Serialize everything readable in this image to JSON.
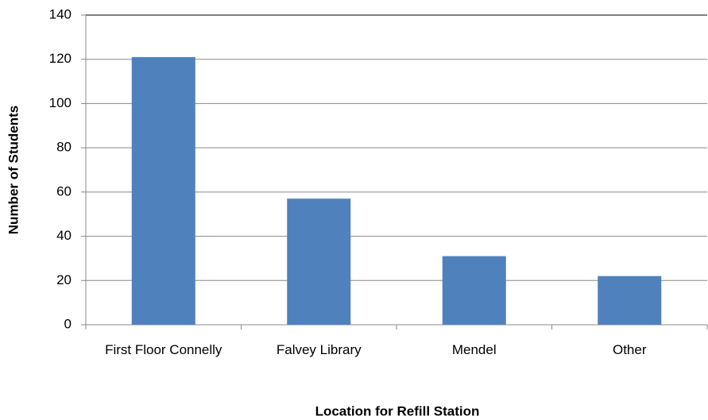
{
  "chart_data": {
    "type": "bar",
    "x_label": "Location for Refill Station",
    "y_label": "Number of Students",
    "categories": [
      "First Floor Connelly",
      "Falvey Library",
      "Mendel",
      "Other"
    ],
    "values": [
      121,
      57,
      31,
      22
    ],
    "color": "#4f81bd",
    "ylim": [
      0,
      140
    ],
    "yticks": [
      0,
      20,
      40,
      60,
      80,
      100,
      120,
      140
    ],
    "grid": true
  }
}
